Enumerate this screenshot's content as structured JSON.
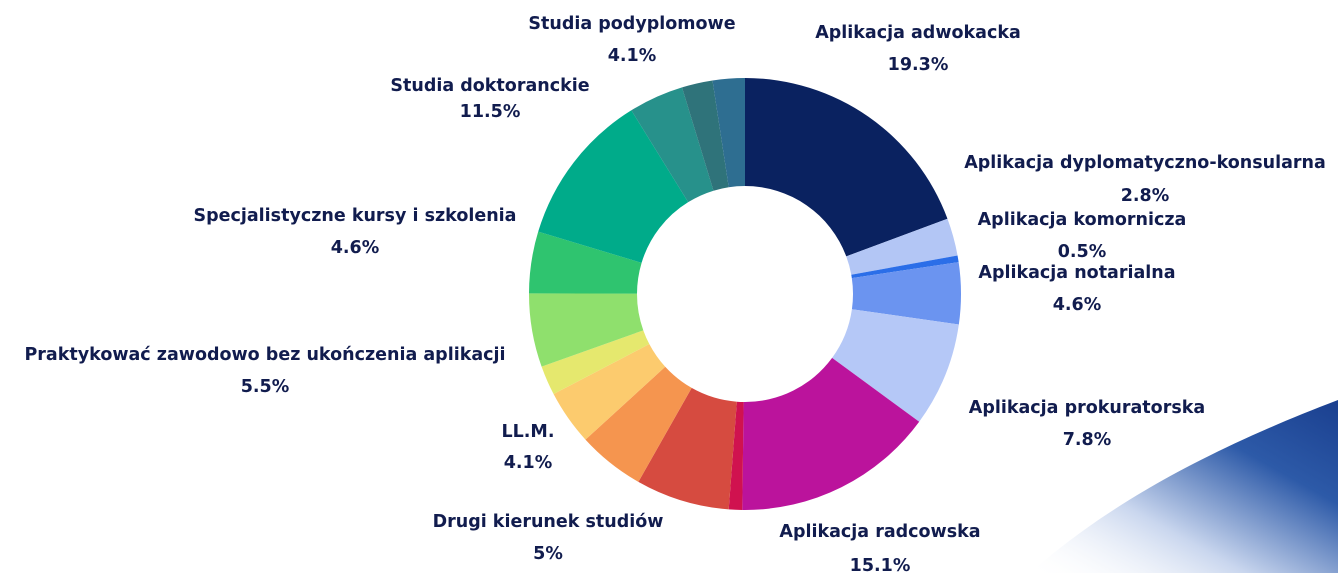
{
  "chart_data": {
    "type": "donut",
    "categories": [
      "Aplikacja adwokacka",
      "Aplikacja dyplomatyczno-konsularna",
      "Aplikacja komornicza",
      "Aplikacja notarialna",
      "Aplikacja prokuratorska",
      "Aplikacja radcowska",
      null,
      null,
      "Drugi kierunek studiów",
      "LL.M.",
      null,
      "Praktykować zawodowo bez ukończenia aplikacji",
      "Specjalistyczne kursy i szkolenia",
      "Studia doktoranckie",
      "Studia podyplomowe",
      null,
      null
    ],
    "values": [
      19.3,
      2.8,
      0.5,
      4.6,
      7.8,
      15.1,
      1,
      7,
      5,
      4.1,
      2.2,
      5.5,
      4.6,
      11.5,
      4.1,
      2.3,
      2.4
    ],
    "value_labels": [
      "19.3%",
      "2.8%",
      "0.5%",
      "4.6%",
      "7.8%",
      "15.1%",
      null,
      null,
      "5%",
      "4.1%",
      null,
      "5.5%",
      "4.6%",
      "11.5%",
      "4.1%",
      null,
      null
    ],
    "colors": [
      "#0a2260",
      "#b3c6f5",
      "#2b6ee8",
      "#6b94f0",
      "#b5c8f7",
      "#bb139c",
      "#d0124f",
      "#d64b40",
      "#f5954f",
      "#fccb6e",
      "#e5e86e",
      "#8fe06d",
      "#2fc46f",
      "#00ab8a",
      "#27918b",
      "#2f737a",
      "#2e6e91"
    ]
  }
}
